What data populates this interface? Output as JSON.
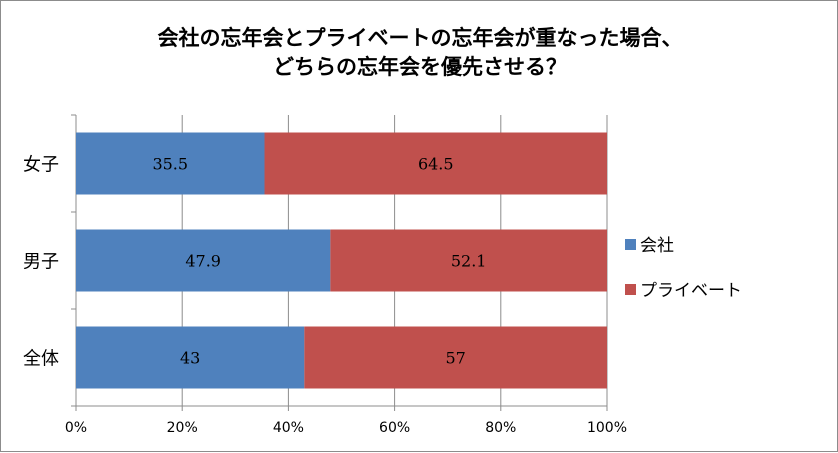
{
  "chart_data": {
    "type": "bar",
    "orientation": "horizontal",
    "stacked": "percent",
    "title": [
      "会社の忘年会とプライベートの忘年会が重なった場合、",
      "どちらの忘年会を優先させる？"
    ],
    "categories": [
      "女子",
      "男子",
      "全体"
    ],
    "series": [
      {
        "name": "会社",
        "values": [
          35.5,
          47.9,
          43
        ],
        "color": "#4f81bd"
      },
      {
        "name": "プライベート",
        "values": [
          64.5,
          52.1,
          57
        ],
        "color": "#c0504d"
      }
    ],
    "xlim": [
      0,
      100
    ],
    "xticks": [
      "0%",
      "20%",
      "40%",
      "60%",
      "80%",
      "100%"
    ],
    "grid": true,
    "legend_position": "right"
  }
}
